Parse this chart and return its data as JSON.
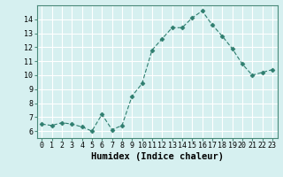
{
  "x": [
    0,
    1,
    2,
    3,
    4,
    5,
    6,
    7,
    8,
    9,
    10,
    11,
    12,
    13,
    14,
    15,
    16,
    17,
    18,
    19,
    20,
    21,
    22,
    23
  ],
  "y": [
    6.5,
    6.4,
    6.6,
    6.5,
    6.3,
    6.0,
    7.2,
    6.1,
    6.4,
    8.5,
    9.4,
    11.8,
    12.6,
    13.4,
    13.4,
    14.1,
    14.6,
    13.6,
    12.8,
    11.9,
    10.8,
    10.0,
    10.2,
    10.4
  ],
  "xlabel": "Humidex (Indice chaleur)",
  "ylim": [
    5.5,
    15
  ],
  "xlim": [
    -0.5,
    23.5
  ],
  "yticks": [
    6,
    7,
    8,
    9,
    10,
    11,
    12,
    13,
    14
  ],
  "xticks": [
    0,
    1,
    2,
    3,
    4,
    5,
    6,
    7,
    8,
    9,
    10,
    11,
    12,
    13,
    14,
    15,
    16,
    17,
    18,
    19,
    20,
    21,
    22,
    23
  ],
  "line_color": "#2e7d6e",
  "marker": "D",
  "marker_size": 2.5,
  "bg_color": "#d6f0f0",
  "grid_color": "#ffffff",
  "grid_minor_color": "#e8f8f8",
  "tick_label_fontsize": 6,
  "xlabel_fontsize": 7.5,
  "spine_color": "#4a8a7a"
}
